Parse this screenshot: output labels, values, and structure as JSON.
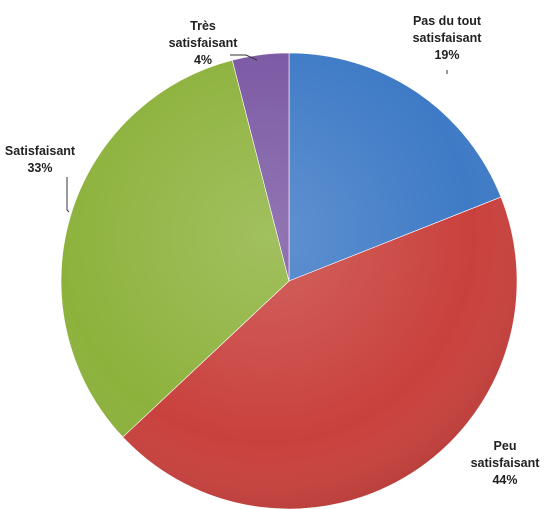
{
  "chart_data": {
    "type": "pie",
    "start_angle_deg": 0,
    "direction": "clockwise",
    "slices": [
      {
        "label": [
          "Pas du tout",
          "satisfaisant"
        ],
        "value": 19,
        "value_label": "19%",
        "color": "#3e7ac6"
      },
      {
        "label": [
          "Peu",
          "satisfaisant"
        ],
        "value": 44,
        "value_label": "44%",
        "color": "#c9413d"
      },
      {
        "label": [
          "Satisfaisant"
        ],
        "value": 33,
        "value_label": "33%",
        "color": "#8db23c"
      },
      {
        "label": [
          "Très",
          "satisfaisant"
        ],
        "value": 4,
        "value_label": "4%",
        "color": "#7a57a3"
      }
    ],
    "legend": "none",
    "data_labels": "outside with leader lines"
  }
}
